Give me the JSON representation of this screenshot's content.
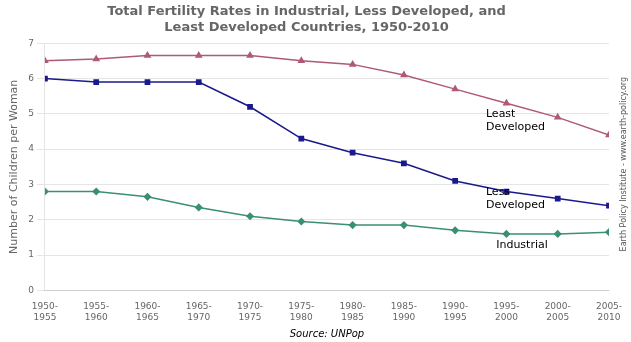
{
  "chart_data": {
    "type": "line",
    "title": "Total Fertility Rates in Industrial, Less Developed, and\nLeast Developed Countries, 1950-2010",
    "ylabel": "Number of Children per Woman",
    "source": "Source: UNPop",
    "watermark": "Earth Policy Institute - www.earth-policy.org",
    "categories": [
      "1950-\n1955",
      "1955-\n1960",
      "1960-\n1965",
      "1965-\n1970",
      "1970-\n1975",
      "1975-\n1980",
      "1980-\n1985",
      "1985-\n1990",
      "1990-\n1995",
      "1995-\n2000",
      "2000-\n2005",
      "2005-\n2010"
    ],
    "series": [
      {
        "color": "#b05878",
        "marker": "triangle",
        "values": [
          6.5,
          6.55,
          6.65,
          6.65,
          6.65,
          6.5,
          6.4,
          6.1,
          5.7,
          5.3,
          4.9,
          4.4
        ]
      },
      {
        "color": "#1a1a8c",
        "marker": "square",
        "values": [
          6.0,
          5.9,
          5.9,
          5.9,
          5.2,
          4.3,
          3.9,
          3.6,
          3.1,
          2.8,
          2.6,
          2.4
        ]
      },
      {
        "color": "#3a9070",
        "marker": "diamond",
        "values": [
          2.8,
          2.8,
          2.65,
          2.35,
          2.1,
          1.95,
          1.85,
          1.85,
          1.7,
          1.6,
          1.6,
          1.65
        ]
      }
    ],
    "annotations": [
      {
        "text": "Least\nDeveloped",
        "x": 8.6,
        "y": 5.15
      },
      {
        "text": "Less\nDeveloped",
        "x": 8.6,
        "y": 2.95
      },
      {
        "text": "Industrial",
        "x": 8.8,
        "y": 1.45
      }
    ],
    "ylim": [
      0,
      7
    ],
    "yticks": [
      0,
      1,
      2,
      3,
      4,
      5,
      6,
      7
    ],
    "grid": "y"
  }
}
